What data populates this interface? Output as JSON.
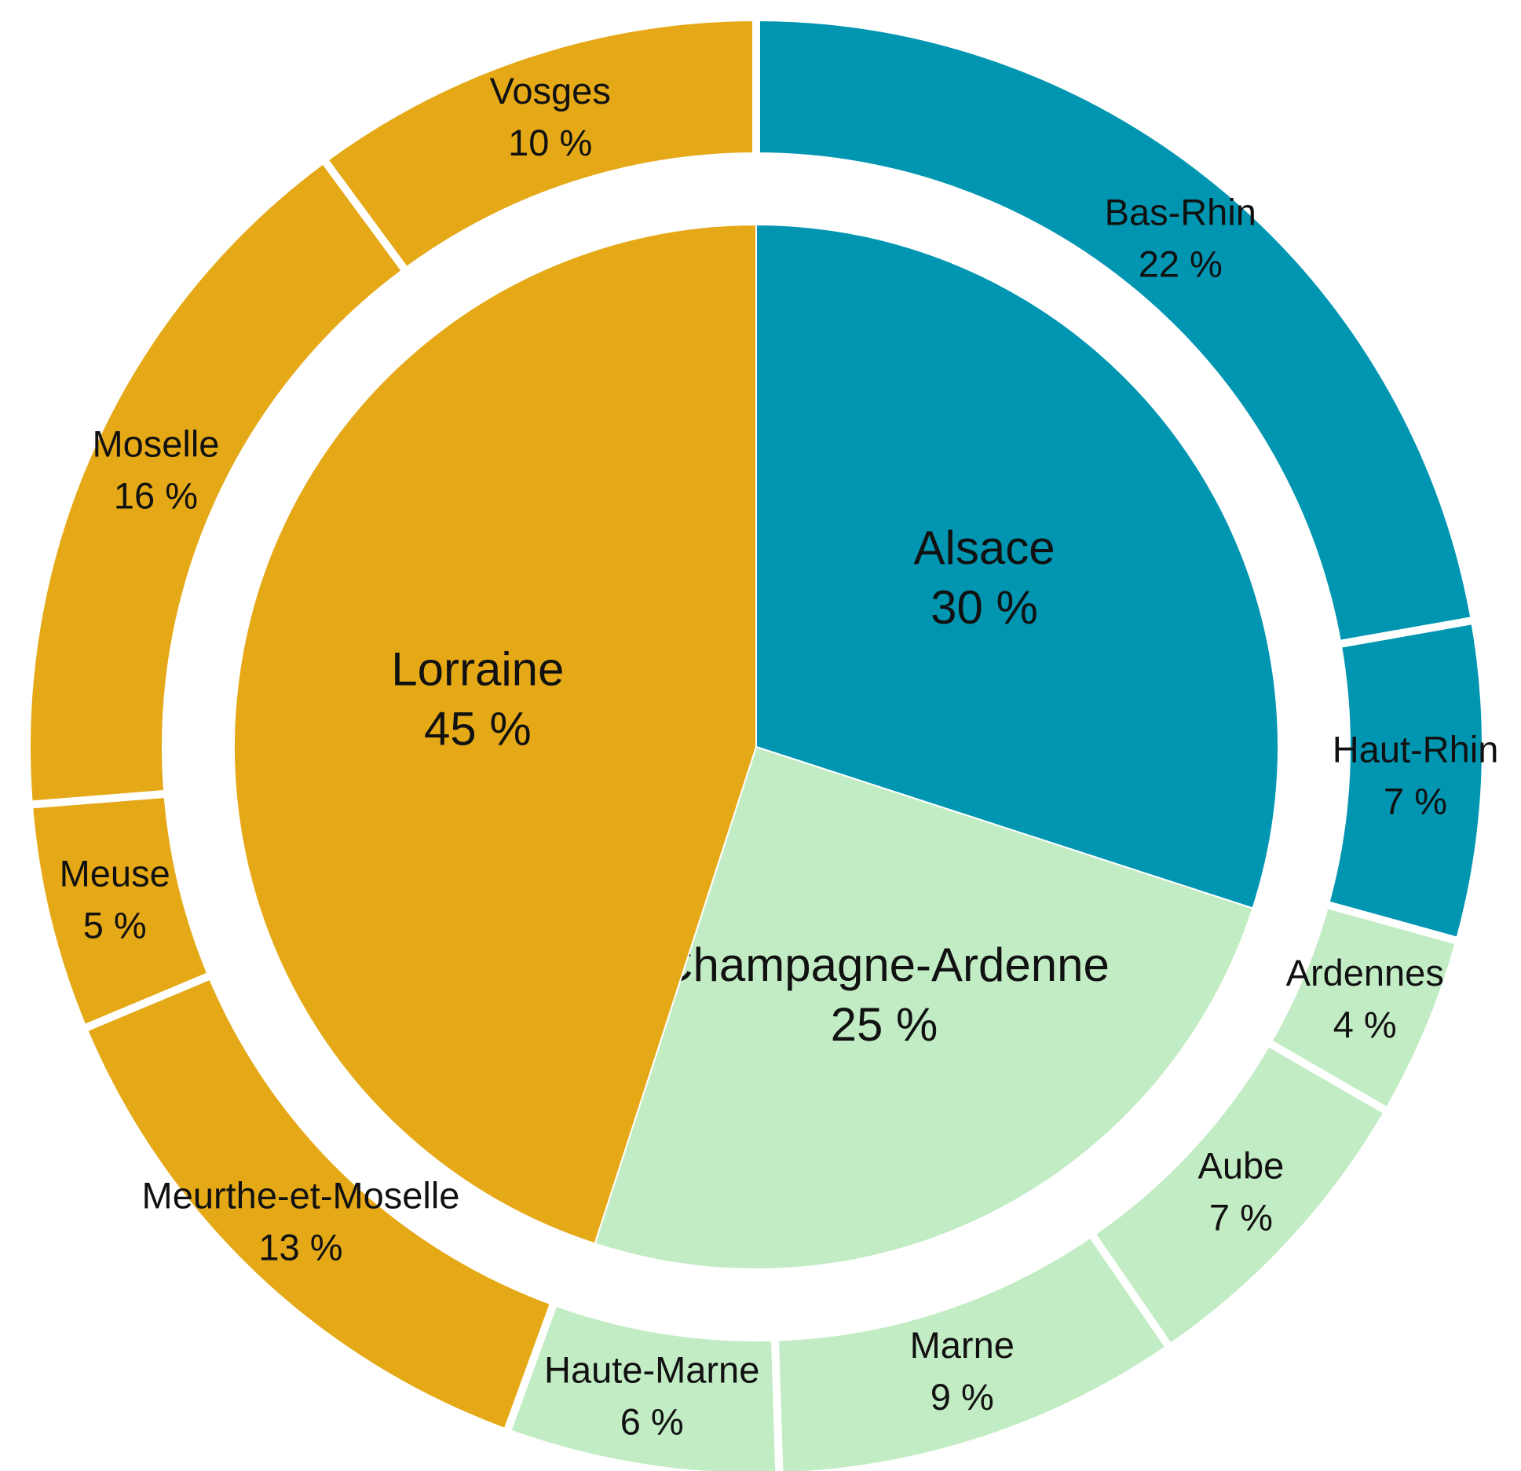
{
  "chart_data": {
    "type": "sunburst",
    "inner": {
      "categories": [
        "Alsace",
        "Champagne-Ardenne",
        "Lorraine"
      ],
      "values": [
        30,
        25,
        45
      ],
      "value_labels": [
        "30 %",
        "25 %",
        "45 %"
      ],
      "colors": [
        "#0096b2",
        "#c2ecc4",
        "#e5a917"
      ]
    },
    "outer": {
      "categories": [
        "Bas-Rhin",
        "Haut-Rhin",
        "Ardennes",
        "Aube",
        "Marne",
        "Haute-Marne",
        "Meurthe-et-Moselle",
        "Meuse",
        "Moselle",
        "Vosges"
      ],
      "values": [
        22,
        7,
        4,
        7,
        9,
        6,
        13,
        5,
        16,
        10
      ],
      "value_labels": [
        "22 %",
        "7 %",
        "4 %",
        "7 %",
        "9 %",
        "6 %",
        "13 %",
        "5 %",
        "16 %",
        "10 %"
      ],
      "colors": [
        "#0096b2",
        "#0096b2",
        "#c2ecc4",
        "#c2ecc4",
        "#c2ecc4",
        "#c2ecc4",
        "#e5a917",
        "#e5a917",
        "#e5a917",
        "#e5a917"
      ]
    }
  }
}
